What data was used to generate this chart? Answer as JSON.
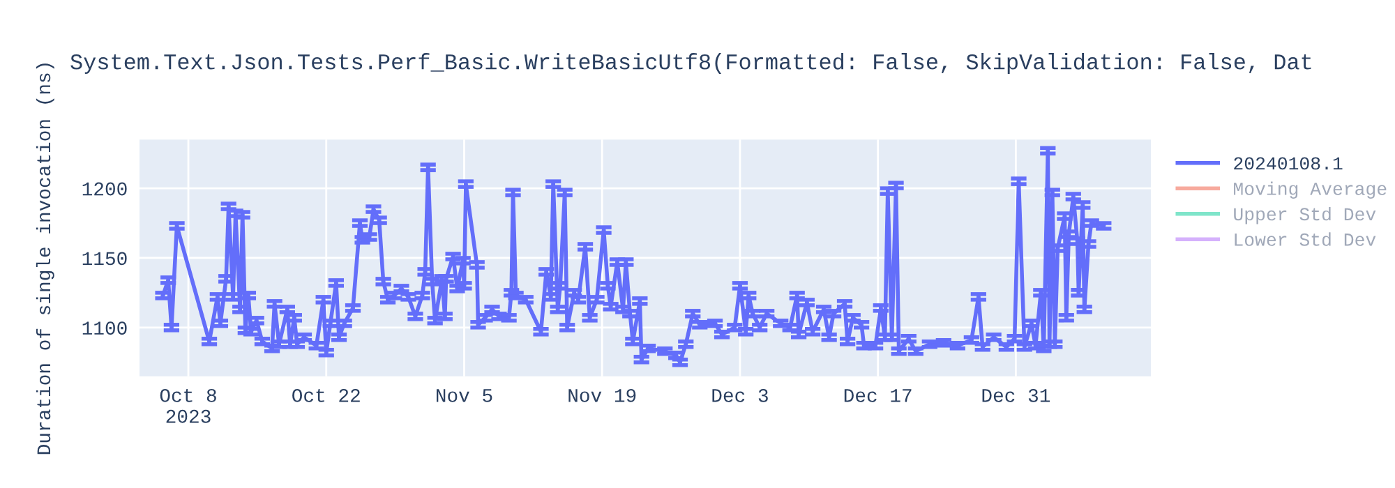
{
  "chart_data": {
    "type": "line",
    "title": "System.Text.Json.Tests.Perf_Basic.WriteBasicUtf8(Formatted: False, SkipValidation: False, Dat",
    "ylabel": "Duration of single invocation (ns)",
    "xlim": [
      "2023-10-03T01:00",
      "2024-01-13T17:00"
    ],
    "xticks": [
      {
        "value": "2023-10-08",
        "label": "Oct 8\n2023"
      },
      {
        "value": "2023-10-22",
        "label": "Oct 22"
      },
      {
        "value": "2023-11-05",
        "label": "Nov 5"
      },
      {
        "value": "2023-11-19",
        "label": "Nov 19"
      },
      {
        "value": "2023-12-03",
        "label": "Dec 3"
      },
      {
        "value": "2023-12-17",
        "label": "Dec 17"
      },
      {
        "value": "2023-12-31",
        "label": "Dec 31"
      }
    ],
    "ylim": [
      1065,
      1235
    ],
    "yticks": [
      1100,
      1150,
      1200
    ],
    "grid": true,
    "legend": "top right",
    "marker": "none",
    "line_style": "solid",
    "series": [
      {
        "name": "20240108.1",
        "color": "#636efa",
        "x": [
          "2023-10-05T10:00",
          "2023-10-05T23:00",
          "2023-10-06T07:00",
          "2023-10-06T20:00",
          "2023-10-10T03:00",
          "2023-10-10T23:00",
          "2023-10-11T06:00",
          "2023-10-11T20:00",
          "2023-10-12T02:00",
          "2023-10-12T13:00",
          "2023-10-12T19:00",
          "2023-10-13T06:00",
          "2023-10-13T12:00",
          "2023-10-13T19:00",
          "2023-10-14T02:00",
          "2023-10-14T09:00",
          "2023-10-14T22:00",
          "2023-10-15T12:00",
          "2023-10-16T12:00",
          "2023-10-16T18:00",
          "2023-10-17T05:00",
          "2023-10-18T01:00",
          "2023-10-18T08:00",
          "2023-10-18T18:00",
          "2023-10-19T01:00",
          "2023-10-19T18:00",
          "2023-10-21T00:00",
          "2023-10-21T17:00",
          "2023-10-22T00:00",
          "2023-10-22T10:00",
          "2023-10-23T00:00",
          "2023-10-23T07:00",
          "2023-10-23T20:00",
          "2023-10-24T17:00",
          "2023-10-25T10:00",
          "2023-10-25T16:00",
          "2023-10-26T09:00",
          "2023-10-26T19:00",
          "2023-10-27T09:00",
          "2023-10-27T19:00",
          "2023-10-28T06:00",
          "2023-10-28T22:00",
          "2023-10-29T15:00",
          "2023-10-30T08:00",
          "2023-10-31T01:00",
          "2023-10-31T18:00",
          "2023-11-01T01:00",
          "2023-11-01T08:00",
          "2023-11-01T18:00",
          "2023-11-02T01:00",
          "2023-11-02T18:00",
          "2023-11-03T01:00",
          "2023-11-03T04:00",
          "2023-11-03T21:00",
          "2023-11-04T07:00",
          "2023-11-04T21:00",
          "2023-11-05T00:00",
          "2023-11-05T04:00",
          "2023-11-06T07:00",
          "2023-11-06T10:00",
          "2023-11-07T03:00",
          "2023-11-07T20:00",
          "2023-11-08T13:00",
          "2023-11-09T13:00",
          "2023-11-09T19:00",
          "2023-11-09T23:00",
          "2023-11-10T06:00",
          "2023-11-11T06:00",
          "2023-11-12T19:00",
          "2023-11-13T08:00",
          "2023-11-13T19:00",
          "2023-11-14T01:00",
          "2023-11-14T12:00",
          "2023-11-14T18:00",
          "2023-11-15T05:00",
          "2023-11-15T11:00",
          "2023-11-16T04:00",
          "2023-11-16T14:00",
          "2023-11-17T07:00",
          "2023-11-17T18:00",
          "2023-11-18T11:00",
          "2023-11-19T04:00",
          "2023-11-19T14:00",
          "2023-11-19T21:00",
          "2023-11-20T13:00",
          "2023-11-21T03:00",
          "2023-11-21T10:00",
          "2023-11-21T20:00",
          "2023-11-22T03:00",
          "2023-11-22T20:00",
          "2023-11-23T00:00",
          "2023-11-23T16:00",
          "2023-11-25T09:00",
          "2023-11-26T12:00",
          "2023-11-26T22:00",
          "2023-11-27T12:00",
          "2023-11-28T05:00",
          "2023-11-28T22:00",
          "2023-11-30T11:00",
          "2023-12-01T04:00",
          "2023-12-02T11:00",
          "2023-12-03T00:00",
          "2023-12-03T14:00",
          "2023-12-03T21:00",
          "2023-12-04T07:00",
          "2023-12-05T00:00",
          "2023-12-05T17:00",
          "2023-12-07T03:00",
          "2023-12-08T02:00",
          "2023-12-08T19:00",
          "2023-12-08T23:00",
          "2023-12-09T19:00",
          "2023-12-10T09:00",
          "2023-12-11T12:00",
          "2023-12-12T01:00",
          "2023-12-12T12:00",
          "2023-12-13T15:00",
          "2023-12-13T22:00",
          "2023-12-14T11:00",
          "2023-12-15T08:00",
          "2023-12-15T14:00",
          "2023-12-16T18:00",
          "2023-12-17T07:00",
          "2023-12-17T17:00",
          "2023-12-18T00:00",
          "2023-12-18T10:00",
          "2023-12-18T20:00",
          "2023-12-19T03:00",
          "2023-12-20T03:00",
          "2023-12-20T20:00",
          "2023-12-22T06:00",
          "2023-12-23T16:00",
          "2023-12-25T02:00",
          "2023-12-26T12:00",
          "2023-12-27T05:00",
          "2023-12-27T15:00",
          "2023-12-28T18:00",
          "2023-12-30T01:00",
          "2023-12-30T21:00",
          "2023-12-31T07:00",
          "2023-12-31T21:00",
          "2024-01-01T14:00",
          "2024-01-02T00:00",
          "2024-01-02T13:00",
          "2024-01-02T20:00",
          "2024-01-03T06:00",
          "2024-01-03T10:00",
          "2024-01-03T17:00",
          "2024-01-03T23:00",
          "2024-01-04T06:00",
          "2024-01-04T23:00",
          "2024-01-05T03:00",
          "2024-01-05T09:00",
          "2024-01-05T20:00",
          "2024-01-06T06:00",
          "2024-01-06T09:00",
          "2024-01-06T19:00",
          "2024-01-06T23:00",
          "2024-01-07T09:00",
          "2024-01-07T16:00",
          "2024-01-08T22:00"
        ],
        "values": [
          1123,
          1134,
          1100,
          1173,
          1090,
          1122,
          1103,
          1135,
          1187,
          1122,
          1182,
          1113,
          1181,
          1098,
          1123,
          1097,
          1105,
          1090,
          1085,
          1117,
          1088,
          1113,
          1088,
          1107,
          1088,
          1093,
          1087,
          1120,
          1082,
          1103,
          1132,
          1093,
          1103,
          1114,
          1175,
          1163,
          1165,
          1185,
          1177,
          1133,
          1120,
          1123,
          1128,
          1122,
          1108,
          1123,
          1140,
          1215,
          1133,
          1105,
          1135,
          1108,
          1135,
          1151,
          1128,
          1148,
          1130,
          1203,
          1145,
          1102,
          1107,
          1113,
          1108,
          1107,
          1125,
          1197,
          1123,
          1120,
          1097,
          1140,
          1122,
          1203,
          1113,
          1130,
          1197,
          1100,
          1125,
          1120,
          1158,
          1107,
          1120,
          1170,
          1130,
          1115,
          1147,
          1113,
          1147,
          1110,
          1090,
          1119,
          1077,
          1085,
          1083,
          1080,
          1075,
          1088,
          1110,
          1102,
          1103,
          1095,
          1100,
          1130,
          1097,
          1123,
          1110,
          1100,
          1110,
          1103,
          1100,
          1123,
          1095,
          1118,
          1097,
          1113,
          1093,
          1110,
          1117,
          1090,
          1107,
          1102,
          1087,
          1087,
          1114,
          1093,
          1198,
          1093,
          1202,
          1083,
          1092,
          1083,
          1088,
          1089,
          1087,
          1091,
          1122,
          1086,
          1093,
          1086,
          1092,
          1205,
          1086,
          1103,
          1087,
          1125,
          1085,
          1227,
          1088,
          1197,
          1088,
          1157,
          1180,
          1107,
          1167,
          1194,
          1162,
          1125,
          1188,
          1113,
          1160,
          1175,
          1173
        ],
        "errors": [
          2,
          2,
          2,
          2,
          2,
          2,
          2,
          2,
          2,
          2,
          2,
          2,
          2,
          2,
          2,
          2,
          2,
          2,
          2,
          2,
          2,
          2,
          2,
          2,
          2,
          2,
          2,
          2,
          2,
          2,
          2,
          2,
          2,
          2,
          2,
          2,
          2,
          2,
          2,
          2,
          2,
          2,
          2,
          2,
          2,
          2,
          2,
          2,
          2,
          2,
          2,
          2,
          2,
          2,
          2,
          2,
          2,
          2,
          2,
          2,
          2,
          2,
          2,
          2,
          2,
          2,
          2,
          2,
          2,
          2,
          2,
          2,
          2,
          2,
          2,
          2,
          2,
          2,
          2,
          2,
          2,
          2,
          2,
          2,
          2,
          2,
          2,
          2,
          2,
          2,
          2,
          2,
          2,
          2,
          2,
          2,
          2,
          2,
          2,
          2,
          2,
          2,
          2,
          2,
          2,
          2,
          2,
          2,
          2,
          2,
          2,
          2,
          2,
          2,
          2,
          2,
          2,
          2,
          2,
          2,
          2,
          2,
          2,
          2,
          2,
          2,
          2,
          2,
          2,
          2,
          2,
          2,
          2,
          2,
          2,
          2,
          2,
          2,
          2,
          2,
          2,
          2,
          2,
          2,
          2,
          2,
          2,
          2,
          2,
          2,
          2,
          2,
          2,
          2,
          2,
          2,
          2,
          2,
          2,
          2,
          2
        ]
      },
      {
        "name": "Moving Average",
        "color": "#ef553b"
      },
      {
        "name": "Upper Std Dev",
        "color": "#00cc96"
      },
      {
        "name": "Lower Std Dev",
        "color": "#ab63fa"
      }
    ]
  }
}
